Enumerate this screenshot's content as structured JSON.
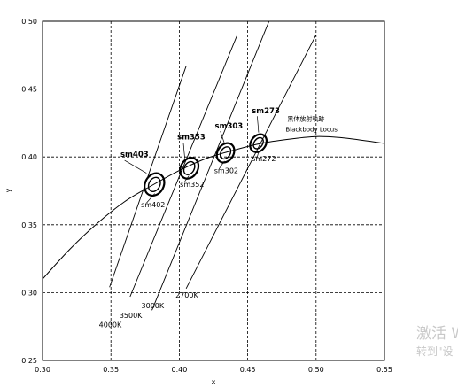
{
  "chart_data": {
    "type": "scatter",
    "title": "",
    "xlabel": "x",
    "ylabel": "y",
    "xlim": [
      0.3,
      0.55
    ],
    "ylim": [
      0.25,
      0.5
    ],
    "xticks": [
      0.3,
      0.35,
      0.4,
      0.45,
      0.5,
      0.55
    ],
    "yticks": [
      0.25,
      0.3,
      0.35,
      0.4,
      0.45,
      0.5
    ],
    "xtick_labels": [
      "0.30",
      "0.35",
      "0.40",
      "0.45",
      "0.50",
      "0.55"
    ],
    "ytick_labels": [
      "0.25",
      "0.30",
      "0.35",
      "0.40",
      "0.45",
      "0.50"
    ],
    "grid": true,
    "blackbody_locus": {
      "label_cn": "黑体放射軌跡",
      "label_en": "Blackbody Locus",
      "points": [
        [
          0.3,
          0.31
        ],
        [
          0.32,
          0.332
        ],
        [
          0.34,
          0.351
        ],
        [
          0.36,
          0.367
        ],
        [
          0.38,
          0.379
        ],
        [
          0.4,
          0.39
        ],
        [
          0.42,
          0.399
        ],
        [
          0.44,
          0.405
        ],
        [
          0.46,
          0.41
        ],
        [
          0.48,
          0.413
        ],
        [
          0.5,
          0.415
        ],
        [
          0.52,
          0.414
        ],
        [
          0.55,
          0.41
        ]
      ]
    },
    "cct_lines": [
      {
        "label": "4000K",
        "from": [
          0.349,
          0.304
        ],
        "to": [
          0.405,
          0.467
        ]
      },
      {
        "label": "3500K",
        "from": [
          0.364,
          0.297
        ],
        "to": [
          0.442,
          0.489
        ]
      },
      {
        "label": "3000K",
        "from": [
          0.38,
          0.287
        ],
        "to": [
          0.47,
          0.511
        ]
      },
      {
        "label": "2700K",
        "from": [
          0.405,
          0.303
        ],
        "to": [
          0.5,
          0.49
        ]
      }
    ],
    "cct_label_positions": [
      {
        "label": "4000K",
        "x": 0.349,
        "y": 0.281
      },
      {
        "label": "3500K",
        "x": 0.364,
        "y": 0.288
      },
      {
        "label": "3000K",
        "x": 0.38,
        "y": 0.295
      },
      {
        "label": "2700K",
        "x": 0.405,
        "y": 0.303
      }
    ],
    "ellipses": [
      {
        "name": "sm403",
        "cx": 0.3818,
        "cy": 0.3797,
        "rx": 0.0068,
        "ry": 0.0086,
        "angle": 28
      },
      {
        "name": "sm402",
        "cx": 0.3818,
        "cy": 0.3797,
        "rx": 0.004,
        "ry": 0.0055,
        "angle": 28
      },
      {
        "name": "sm353",
        "cx": 0.4073,
        "cy": 0.3917,
        "rx": 0.0062,
        "ry": 0.0081,
        "angle": 30
      },
      {
        "name": "sm352",
        "cx": 0.4073,
        "cy": 0.3917,
        "rx": 0.0036,
        "ry": 0.0051,
        "angle": 30
      },
      {
        "name": "sm303",
        "cx": 0.4338,
        "cy": 0.403,
        "rx": 0.0058,
        "ry": 0.0076,
        "angle": 33
      },
      {
        "name": "sm302",
        "cx": 0.4338,
        "cy": 0.403,
        "rx": 0.0034,
        "ry": 0.0048,
        "angle": 33
      },
      {
        "name": "sm273",
        "cx": 0.4578,
        "cy": 0.4101,
        "rx": 0.0054,
        "ry": 0.0071,
        "angle": 36
      },
      {
        "name": "sm272",
        "cx": 0.4578,
        "cy": 0.4101,
        "rx": 0.0031,
        "ry": 0.0045,
        "angle": 36
      }
    ],
    "ellipse_labels": [
      {
        "text": "sm403",
        "x": 0.357,
        "y": 0.4,
        "bold": true
      },
      {
        "text": "sm402",
        "x": 0.372,
        "y": 0.363,
        "bold": false
      },
      {
        "text": "sm353",
        "x": 0.3985,
        "y": 0.413,
        "bold": true
      },
      {
        "text": "sm352",
        "x": 0.4005,
        "y": 0.378,
        "bold": false
      },
      {
        "text": "sm303",
        "x": 0.426,
        "y": 0.421,
        "bold": true
      },
      {
        "text": "sm302",
        "x": 0.4255,
        "y": 0.388,
        "bold": false
      },
      {
        "text": "sm273",
        "x": 0.453,
        "y": 0.432,
        "bold": true
      },
      {
        "text": "sm272",
        "x": 0.453,
        "y": 0.397,
        "bold": false
      }
    ],
    "leaders": [
      {
        "from": [
          0.36,
          0.3975
        ],
        "to": [
          0.376,
          0.388
        ]
      },
      {
        "from": [
          0.376,
          0.366
        ],
        "to": [
          0.382,
          0.373
        ]
      },
      {
        "from": [
          0.403,
          0.41
        ],
        "to": [
          0.404,
          0.399
        ]
      },
      {
        "from": [
          0.404,
          0.382
        ],
        "to": [
          0.407,
          0.386
        ]
      },
      {
        "from": [
          0.43,
          0.419
        ],
        "to": [
          0.433,
          0.41
        ]
      },
      {
        "from": [
          0.429,
          0.391
        ],
        "to": [
          0.433,
          0.397
        ]
      },
      {
        "from": [
          0.457,
          0.43
        ],
        "to": [
          0.458,
          0.418
        ]
      },
      {
        "from": [
          0.457,
          0.4
        ],
        "to": [
          0.458,
          0.404
        ]
      }
    ],
    "locus_label_pos": {
      "x": 0.479,
      "y": 0.4265
    }
  },
  "watermark": {
    "line1": "激活 W",
    "line2": "转到\"设"
  }
}
